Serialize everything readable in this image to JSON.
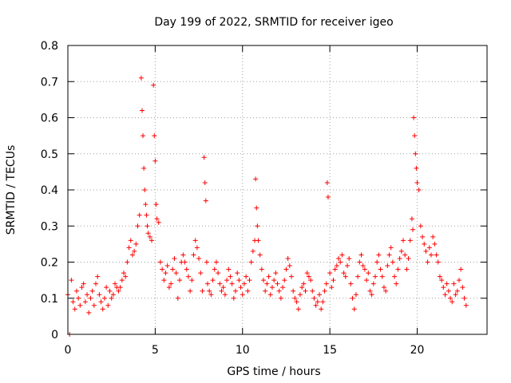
{
  "chart_data": {
    "type": "scatter",
    "title": "Day 199 of 2022, SRMTID for receiver igeo",
    "xlabel": "GPS time / hours",
    "ylabel": "SRMTID / TECUs",
    "xlim": [
      0,
      24
    ],
    "ylim": [
      0,
      0.8
    ],
    "xticks": [
      0,
      5,
      10,
      15,
      20
    ],
    "yticks": [
      0,
      0.1,
      0.2,
      0.3,
      0.4,
      0.5,
      0.6,
      0.7,
      0.8
    ],
    "grid": true,
    "marker": "+",
    "color": "#ff0000",
    "series": [
      {
        "name": "SRMTID",
        "x": [
          0.0,
          0.1,
          0.2,
          0.3,
          0.4,
          0.5,
          0.6,
          0.7,
          0.8,
          0.9,
          1.0,
          1.1,
          1.2,
          1.3,
          1.4,
          1.5,
          1.6,
          1.7,
          1.8,
          1.9,
          2.0,
          2.1,
          2.2,
          2.3,
          2.4,
          2.5,
          2.6,
          2.7,
          2.8,
          2.9,
          3.0,
          3.1,
          3.2,
          3.3,
          3.4,
          3.5,
          3.6,
          3.7,
          3.8,
          3.9,
          4.0,
          4.1,
          4.2,
          4.25,
          4.3,
          4.35,
          4.4,
          4.45,
          4.5,
          4.55,
          4.6,
          4.7,
          4.8,
          4.9,
          4.95,
          5.0,
          5.05,
          5.1,
          5.2,
          5.3,
          5.4,
          5.5,
          5.6,
          5.7,
          5.8,
          5.9,
          6.0,
          6.1,
          6.2,
          6.3,
          6.4,
          6.5,
          6.6,
          6.7,
          6.8,
          6.9,
          7.0,
          7.1,
          7.2,
          7.3,
          7.4,
          7.5,
          7.6,
          7.7,
          7.8,
          7.85,
          7.9,
          7.95,
          8.0,
          8.1,
          8.2,
          8.3,
          8.4,
          8.5,
          8.6,
          8.7,
          8.8,
          8.9,
          9.0,
          9.1,
          9.2,
          9.3,
          9.4,
          9.5,
          9.6,
          9.7,
          9.8,
          9.9,
          10.0,
          10.1,
          10.2,
          10.3,
          10.4,
          10.5,
          10.6,
          10.7,
          10.75,
          10.8,
          10.85,
          10.9,
          11.0,
          11.1,
          11.2,
          11.3,
          11.4,
          11.5,
          11.6,
          11.7,
          11.8,
          11.9,
          12.0,
          12.1,
          12.2,
          12.3,
          12.4,
          12.5,
          12.6,
          12.7,
          12.8,
          12.9,
          13.0,
          13.1,
          13.2,
          13.3,
          13.4,
          13.5,
          13.6,
          13.7,
          13.8,
          13.9,
          14.0,
          14.1,
          14.2,
          14.3,
          14.4,
          14.5,
          14.6,
          14.7,
          14.8,
          14.85,
          14.9,
          15.0,
          15.1,
          15.2,
          15.3,
          15.4,
          15.5,
          15.6,
          15.7,
          15.8,
          15.9,
          16.0,
          16.1,
          16.2,
          16.3,
          16.4,
          16.5,
          16.6,
          16.7,
          16.8,
          16.9,
          17.0,
          17.1,
          17.2,
          17.3,
          17.4,
          17.5,
          17.6,
          17.7,
          17.8,
          17.9,
          18.0,
          18.1,
          18.2,
          18.3,
          18.4,
          18.5,
          18.6,
          18.7,
          18.8,
          18.9,
          19.0,
          19.1,
          19.2,
          19.3,
          19.4,
          19.5,
          19.6,
          19.7,
          19.75,
          19.8,
          19.85,
          19.9,
          19.95,
          20.0,
          20.1,
          20.2,
          20.3,
          20.4,
          20.5,
          20.6,
          20.7,
          20.8,
          20.9,
          21.0,
          21.1,
          21.2,
          21.3,
          21.4,
          21.5,
          21.6,
          21.7,
          21.8,
          21.9,
          22.0,
          22.1,
          22.2,
          22.3,
          22.4,
          22.5,
          22.6,
          22.7,
          22.8
        ],
        "y": [
          0.11,
          0.0,
          0.15,
          0.09,
          0.07,
          0.12,
          0.1,
          0.08,
          0.13,
          0.14,
          0.09,
          0.11,
          0.06,
          0.1,
          0.12,
          0.08,
          0.14,
          0.16,
          0.11,
          0.09,
          0.07,
          0.1,
          0.13,
          0.08,
          0.12,
          0.1,
          0.11,
          0.14,
          0.13,
          0.12,
          0.13,
          0.15,
          0.17,
          0.16,
          0.2,
          0.24,
          0.26,
          0.22,
          0.23,
          0.25,
          0.3,
          0.33,
          0.71,
          0.62,
          0.55,
          0.46,
          0.4,
          0.36,
          0.33,
          0.3,
          0.28,
          0.27,
          0.26,
          0.69,
          0.55,
          0.48,
          0.36,
          0.32,
          0.31,
          0.2,
          0.18,
          0.15,
          0.17,
          0.19,
          0.13,
          0.14,
          0.18,
          0.21,
          0.17,
          0.1,
          0.15,
          0.2,
          0.22,
          0.2,
          0.18,
          0.16,
          0.12,
          0.15,
          0.22,
          0.26,
          0.24,
          0.21,
          0.17,
          0.12,
          0.49,
          0.42,
          0.37,
          0.2,
          0.14,
          0.12,
          0.11,
          0.15,
          0.18,
          0.2,
          0.17,
          0.14,
          0.12,
          0.13,
          0.11,
          0.15,
          0.18,
          0.16,
          0.14,
          0.1,
          0.12,
          0.17,
          0.15,
          0.13,
          0.11,
          0.14,
          0.16,
          0.12,
          0.15,
          0.2,
          0.23,
          0.26,
          0.43,
          0.35,
          0.3,
          0.26,
          0.22,
          0.18,
          0.15,
          0.12,
          0.14,
          0.16,
          0.11,
          0.13,
          0.15,
          0.17,
          0.14,
          0.12,
          0.1,
          0.13,
          0.15,
          0.18,
          0.21,
          0.19,
          0.16,
          0.12,
          0.1,
          0.09,
          0.07,
          0.11,
          0.13,
          0.14,
          0.12,
          0.17,
          0.16,
          0.15,
          0.12,
          0.1,
          0.08,
          0.09,
          0.11,
          0.07,
          0.09,
          0.12,
          0.14,
          0.42,
          0.38,
          0.17,
          0.13,
          0.15,
          0.18,
          0.19,
          0.21,
          0.2,
          0.22,
          0.17,
          0.16,
          0.19,
          0.21,
          0.14,
          0.1,
          0.07,
          0.11,
          0.16,
          0.2,
          0.22,
          0.19,
          0.18,
          0.15,
          0.17,
          0.12,
          0.11,
          0.14,
          0.16,
          0.2,
          0.22,
          0.18,
          0.16,
          0.13,
          0.12,
          0.19,
          0.22,
          0.24,
          0.2,
          0.16,
          0.14,
          0.18,
          0.21,
          0.23,
          0.26,
          0.22,
          0.18,
          0.21,
          0.26,
          0.32,
          0.29,
          0.6,
          0.55,
          0.5,
          0.46,
          0.42,
          0.4,
          0.3,
          0.27,
          0.25,
          0.23,
          0.2,
          0.24,
          0.22,
          0.27,
          0.25,
          0.22,
          0.2,
          0.16,
          0.15,
          0.13,
          0.11,
          0.14,
          0.12,
          0.1,
          0.09,
          0.14,
          0.11,
          0.12,
          0.15,
          0.18,
          0.13,
          0.1,
          0.08
        ]
      }
    ]
  }
}
